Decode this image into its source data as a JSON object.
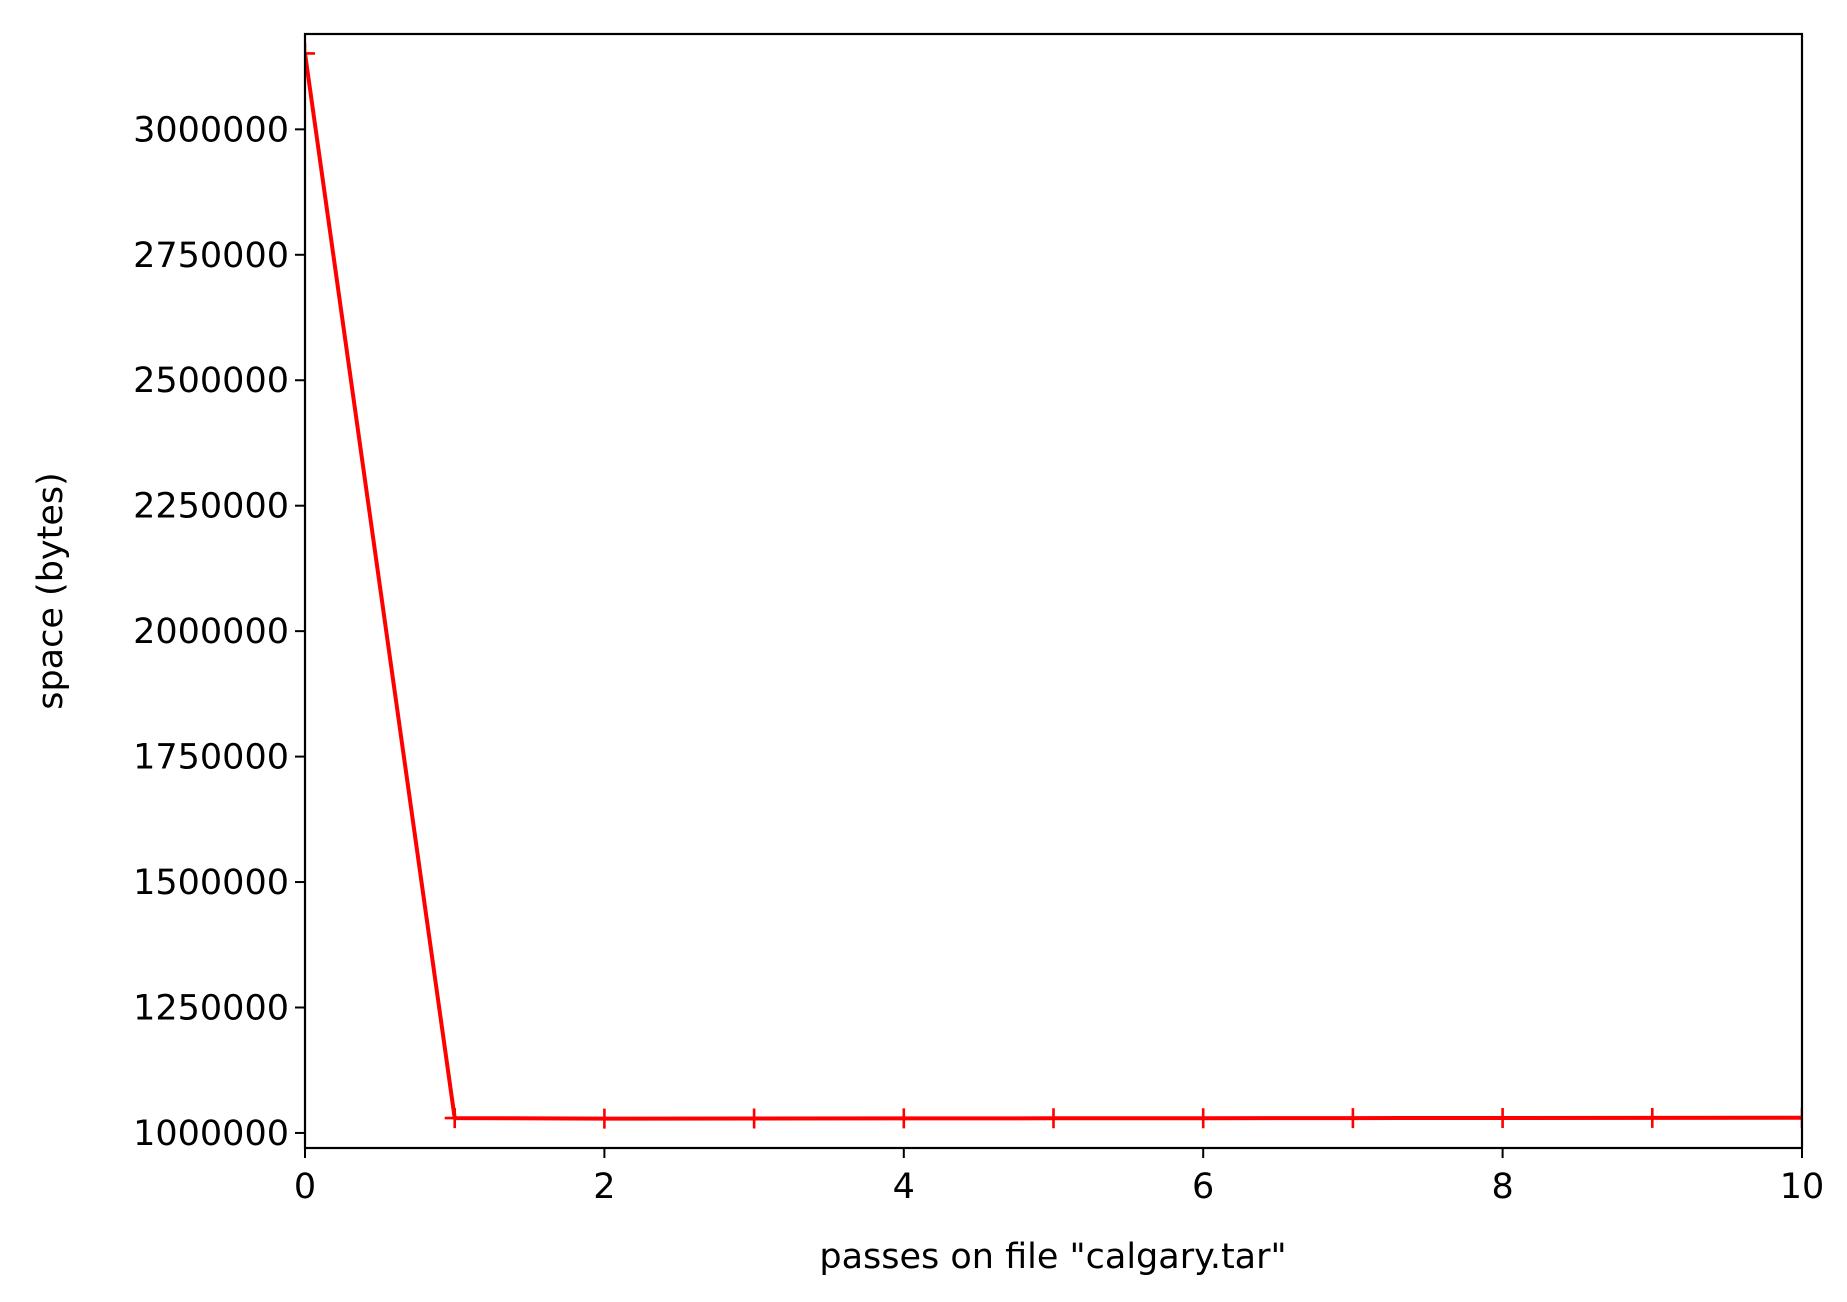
{
  "chart_data": {
    "type": "line",
    "title": "",
    "xlabel": "passes on file \"calgary.tar\"",
    "ylabel": "space (bytes)",
    "xlim": [
      0,
      10
    ],
    "ylim": [
      970000,
      3190000
    ],
    "x_ticks": [
      0,
      2,
      4,
      6,
      8,
      10
    ],
    "x_tick_labels": [
      "0",
      "2",
      "4",
      "6",
      "8",
      "10"
    ],
    "y_ticks": [
      1000000,
      1250000,
      1500000,
      1750000,
      2000000,
      2250000,
      2500000,
      2750000,
      3000000
    ],
    "y_tick_labels": [
      "1000000",
      "1250000",
      "1500000",
      "1750000",
      "2000000",
      "2250000",
      "2500000",
      "2750000",
      "3000000"
    ],
    "grid": false,
    "legend": "none",
    "series": [
      {
        "color": "#ff0000",
        "marker": "+",
        "x": [
          0,
          1,
          2,
          3,
          4,
          5,
          6,
          7,
          8,
          9,
          10
        ],
        "y": [
          3151360,
          1029600,
          1028500,
          1028800,
          1029000,
          1029200,
          1029400,
          1029600,
          1029800,
          1030000,
          1030200
        ]
      }
    ]
  }
}
